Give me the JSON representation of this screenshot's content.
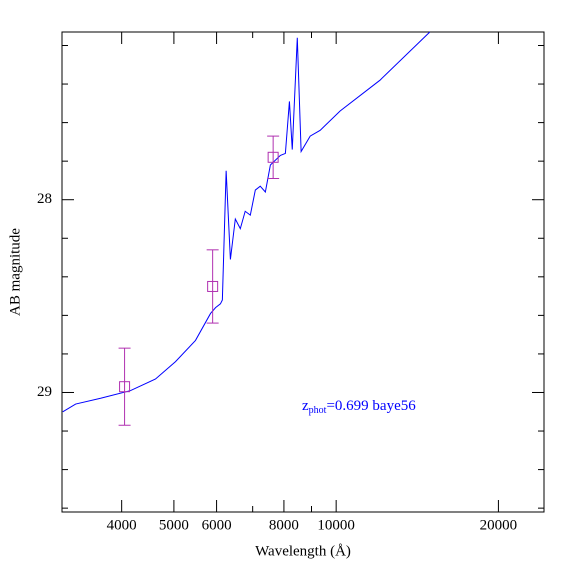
{
  "chart_data": {
    "type": "line",
    "xlabel": "Wavelength (Å)",
    "ylabel": "AB magnitude",
    "annotation": {
      "z": "z",
      "sub": "phot",
      "rest": "=0.699 baye56",
      "color": "#0000ff"
    },
    "log_x": true,
    "xlim": [
      3100,
      24300
    ],
    "xticks": [
      4000,
      5000,
      6000,
      8000,
      10000,
      20000
    ],
    "xminorticks": [
      7000,
      9000
    ],
    "ylim": [
      29.62,
      27.13
    ],
    "yticks": [
      28,
      29
    ],
    "yminorticks": [
      27.2,
      27.4,
      27.6,
      27.8,
      28.2,
      28.4,
      28.6,
      28.8,
      29.2,
      29.4,
      29.6
    ],
    "series": [
      {
        "type": "line",
        "color": "#0000ff",
        "x": [
          3110,
          3286,
          3656,
          4155,
          4623,
          5035,
          5483,
          5847,
          5974,
          6100,
          6150,
          6250,
          6365,
          6500,
          6640,
          6780,
          6930,
          7080,
          7230,
          7390,
          7550,
          7880,
          8050,
          8190,
          8290,
          8470,
          8610,
          8950,
          9340,
          10170,
          12060,
          14920
        ],
        "values": [
          29.1,
          29.06,
          29.03,
          28.99,
          28.93,
          28.84,
          28.73,
          28.59,
          28.56,
          28.54,
          28.52,
          27.85,
          28.31,
          28.1,
          28.15,
          28.06,
          28.08,
          27.95,
          27.93,
          27.96,
          27.82,
          27.77,
          27.76,
          27.49,
          27.74,
          27.16,
          27.75,
          27.67,
          27.64,
          27.54,
          27.38,
          27.13
        ]
      },
      {
        "type": "scatter",
        "color": "#b030b0",
        "x": [
          4050,
          5900,
          7640
        ],
        "values": [
          28.97,
          28.45,
          27.78
        ],
        "errors": [
          0.2,
          0.19,
          0.11
        ]
      }
    ]
  }
}
